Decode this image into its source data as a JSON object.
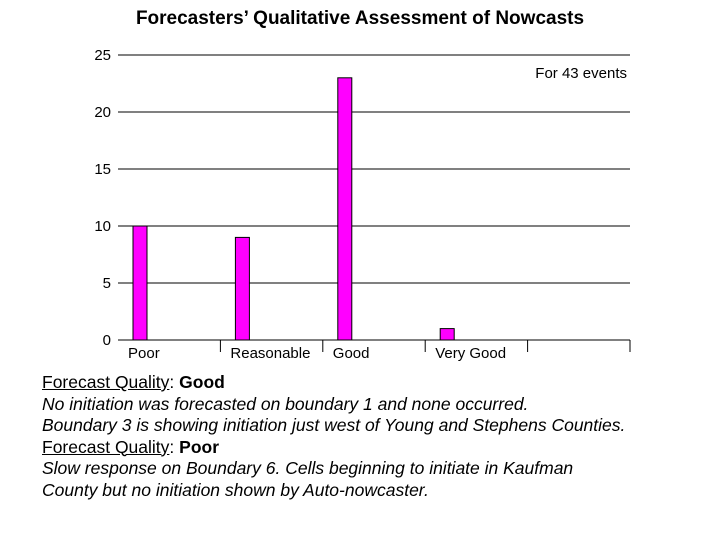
{
  "chart_data": {
    "type": "bar",
    "title": "Forecasters’ Qualitative Assessment of Nowcasts",
    "annotation": "For 43 events",
    "categories": [
      "Poor",
      "Reasonable",
      "Good",
      "Very Good",
      ""
    ],
    "values": [
      10,
      9,
      23,
      1,
      0
    ],
    "ylim": [
      0,
      25
    ],
    "yticks": [
      0,
      5,
      10,
      15,
      20,
      25
    ],
    "xlabel": "",
    "ylabel": "",
    "grid": true,
    "bar_color": "#ff00ff"
  },
  "notes": {
    "block1_label": "Forecast Quality",
    "block1_colon": ": ",
    "block1_value": "Good",
    "block1_line1": "No initiation was forecasted on boundary 1 and none occurred.",
    "block1_line2": "Boundary 3 is showing initiation just west of Young and Stephens Counties.",
    "block2_label": "Forecast Quality",
    "block2_colon": ": ",
    "block2_value": "Poor",
    "block2_line1": "Slow response on Boundary 6.  Cells beginning to initiate in Kaufman",
    "block2_line2": "County but no initiation shown by Auto-nowcaster."
  }
}
